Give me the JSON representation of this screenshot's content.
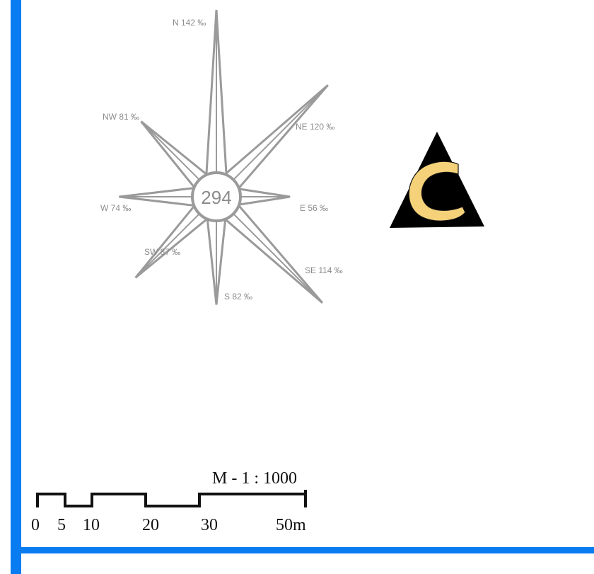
{
  "colors": {
    "frame": "#0a7cf2",
    "rose_stroke": "#9a9a9a",
    "label": "#8c8c8c",
    "logo_dark": "#000000",
    "logo_fill": "#f5d27a"
  },
  "wind_rose": {
    "center_count": "294",
    "unit_note": "‰",
    "directions": [
      {
        "key": "N",
        "label": "N 142 ‰",
        "value": 142
      },
      {
        "key": "NE",
        "label": "NE 120 ‰",
        "value": 120
      },
      {
        "key": "E",
        "label": "E 56 ‰",
        "value": 56
      },
      {
        "key": "SE",
        "label": "SE 114 ‰",
        "value": 114
      },
      {
        "key": "S",
        "label": "S 82 ‰",
        "value": 82
      },
      {
        "key": "SW",
        "label": "SW 87 ‰",
        "value": 87
      },
      {
        "key": "W",
        "label": "W 74 ‰",
        "value": 74
      },
      {
        "key": "NW",
        "label": "NW 81 ‰",
        "value": 81
      }
    ]
  },
  "logo": {
    "icon": "c-in-triangle-logo"
  },
  "scale_bar": {
    "title": "M - 1 : 1000",
    "ticks": [
      "0",
      "5",
      "10",
      "20",
      "30",
      "50m"
    ]
  }
}
